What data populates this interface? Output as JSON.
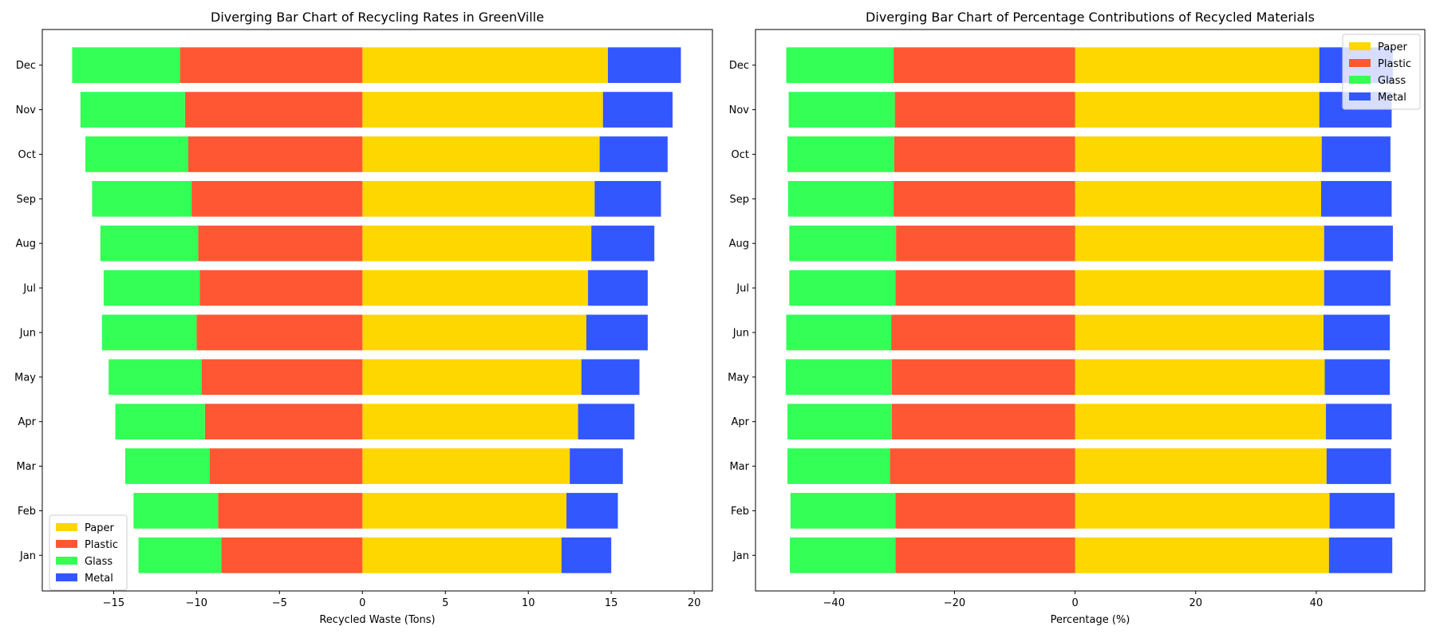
{
  "chart_data": [
    {
      "type": "bar",
      "orientation": "horizontal-diverging",
      "title": "Diverging Bar Chart of Recycling Rates in GreenVille",
      "xlabel": "Recycled Waste (Tons)",
      "ylabel": "",
      "categories": [
        "Jan",
        "Feb",
        "Mar",
        "Apr",
        "May",
        "Jun",
        "Jul",
        "Aug",
        "Sep",
        "Oct",
        "Nov",
        "Dec"
      ],
      "xlim": [
        -19.3,
        21.1
      ],
      "xticks": [
        -15,
        -10,
        -5,
        0,
        5,
        10,
        15,
        20
      ],
      "xtick_labels": [
        "−15",
        "−10",
        "−5",
        "0",
        "5",
        "10",
        "15",
        "20"
      ],
      "grid": false,
      "legend_position": "lower-left",
      "series": [
        {
          "name": "Paper",
          "color": "#FFD700",
          "side": "right",
          "values": [
            12.0,
            12.3,
            12.5,
            13.0,
            13.2,
            13.5,
            13.6,
            13.8,
            14.0,
            14.3,
            14.5,
            14.8
          ]
        },
        {
          "name": "Plastic",
          "color": "#FF5733",
          "side": "left",
          "values": [
            8.5,
            8.7,
            9.2,
            9.5,
            9.7,
            10.0,
            9.8,
            9.9,
            10.3,
            10.5,
            10.7,
            11.0
          ]
        },
        {
          "name": "Glass",
          "color": "#33FF57",
          "side": "left",
          "values": [
            5.0,
            5.1,
            5.1,
            5.4,
            5.6,
            5.7,
            5.8,
            5.9,
            6.0,
            6.2,
            6.3,
            6.5
          ]
        },
        {
          "name": "Metal",
          "color": "#3357FF",
          "side": "right",
          "values": [
            3.0,
            3.1,
            3.2,
            3.4,
            3.5,
            3.7,
            3.6,
            3.8,
            4.0,
            4.1,
            4.2,
            4.4
          ]
        }
      ]
    },
    {
      "type": "bar",
      "orientation": "horizontal-diverging",
      "title": "Diverging Bar Chart of Percentage Contributions of Recycled Materials",
      "xlabel": "Percentage (%)",
      "ylabel": "",
      "categories": [
        "Jan",
        "Feb",
        "Mar",
        "Apr",
        "May",
        "Jun",
        "Jul",
        "Aug",
        "Sep",
        "Oct",
        "Nov",
        "Dec"
      ],
      "xlim": [
        -53.0,
        58.0
      ],
      "xticks": [
        -40,
        -20,
        0,
        20,
        40
      ],
      "xtick_labels": [
        "−40",
        "−20",
        "0",
        "20",
        "40"
      ],
      "grid": false,
      "legend_position": "top-right",
      "series": [
        {
          "name": "Paper",
          "color": "#FFD700",
          "side": "right",
          "values": [
            42.1,
            42.2,
            41.7,
            41.6,
            41.4,
            41.2,
            41.3,
            41.3,
            40.8,
            40.9,
            40.5,
            40.5
          ]
        },
        {
          "name": "Plastic",
          "color": "#FF5733",
          "side": "left",
          "values": [
            29.8,
            29.8,
            30.7,
            30.4,
            30.4,
            30.5,
            29.8,
            29.7,
            30.1,
            30.0,
            29.9,
            30.1
          ]
        },
        {
          "name": "Glass",
          "color": "#33FF57",
          "side": "left",
          "values": [
            17.5,
            17.4,
            17.0,
            17.3,
            17.6,
            17.4,
            17.6,
            17.7,
            17.5,
            17.7,
            17.6,
            17.8
          ]
        },
        {
          "name": "Metal",
          "color": "#3357FF",
          "side": "right",
          "values": [
            10.5,
            10.8,
            10.7,
            10.9,
            10.8,
            11.0,
            11.0,
            11.4,
            11.7,
            11.4,
            12.0,
            12.2
          ]
        }
      ]
    }
  ]
}
